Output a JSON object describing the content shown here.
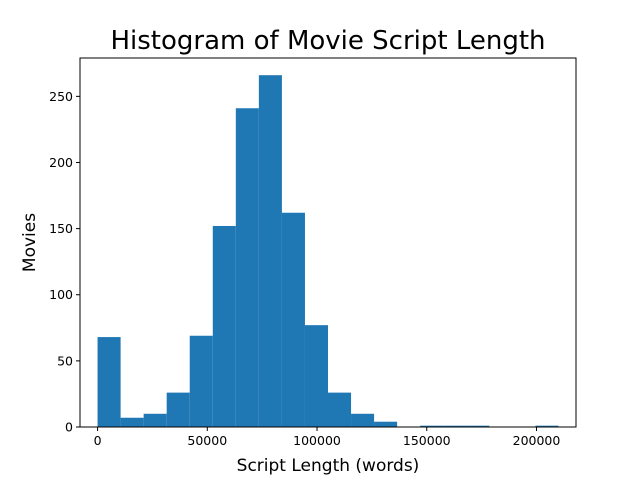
{
  "chart_data": {
    "type": "bar",
    "title": "Histogram of Movie Script Length",
    "xlabel": "Script Length (words)",
    "ylabel": "Movies",
    "xlim": [
      -8000,
      218000
    ],
    "ylim": [
      0,
      279
    ],
    "xticks": [
      0,
      50000,
      100000,
      150000,
      200000
    ],
    "xtick_labels": [
      "0",
      "50000",
      "100000",
      "150000",
      "200000"
    ],
    "yticks": [
      0,
      50,
      100,
      150,
      200,
      250
    ],
    "ytick_labels": [
      "0",
      "50",
      "100",
      "150",
      "200",
      "250"
    ],
    "grid": false,
    "bar_color": "#1f77b4",
    "bin_edges": [
      0,
      10500,
      21000,
      31500,
      42000,
      52500,
      63000,
      73500,
      84000,
      94500,
      105000,
      115500,
      126000,
      136500,
      147000,
      157500,
      168000,
      178500,
      189000,
      199500,
      210000
    ],
    "counts": [
      68,
      7,
      10,
      26,
      69,
      152,
      241,
      266,
      162,
      77,
      26,
      10,
      4,
      0,
      1,
      1,
      1,
      0,
      0,
      1
    ]
  }
}
